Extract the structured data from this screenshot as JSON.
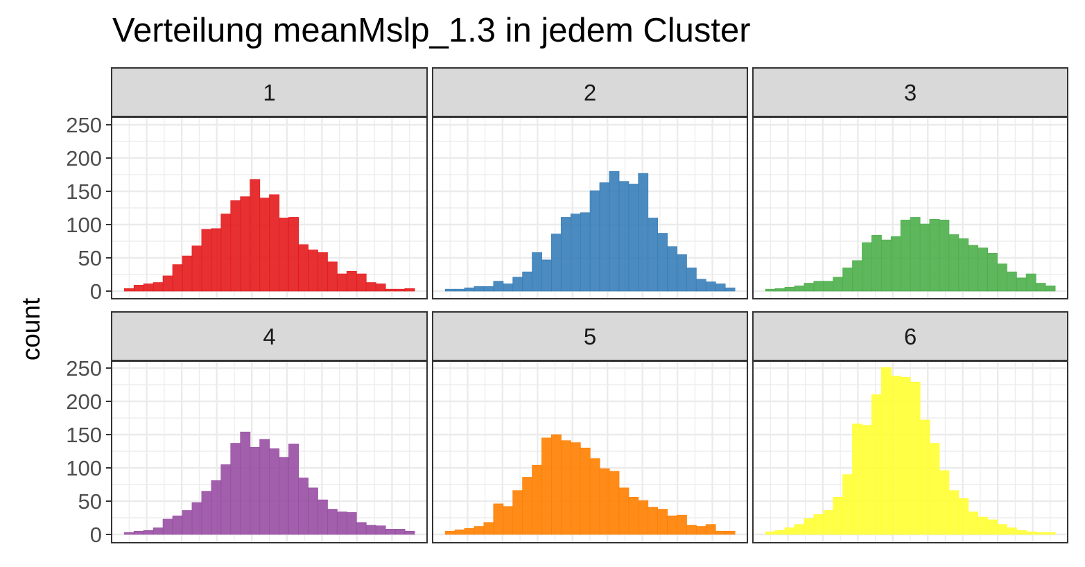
{
  "chart_data": {
    "type": "bar",
    "title": "Verteilung meanMslp_1.3 in jedem Cluster",
    "xlabel": "",
    "ylabel": "count",
    "ylim": [
      0,
      265
    ],
    "yticks": [
      0,
      50,
      100,
      150,
      200,
      250
    ],
    "grid": true,
    "legend": "none",
    "panels": [
      {
        "label": "1",
        "color": "#e41a1c",
        "values": [
          4,
          9,
          11,
          13,
          23,
          40,
          53,
          68,
          93,
          94,
          116,
          136,
          142,
          168,
          140,
          145,
          110,
          111,
          70,
          62,
          58,
          44,
          26,
          30,
          26,
          13,
          11,
          3,
          3,
          4
        ]
      },
      {
        "label": "2",
        "color": "#377eb8",
        "values": [
          3,
          3,
          5,
          7,
          7,
          15,
          11,
          21,
          29,
          58,
          47,
          86,
          111,
          116,
          118,
          151,
          163,
          180,
          165,
          161,
          177,
          110,
          87,
          67,
          55,
          35,
          18,
          14,
          11,
          5
        ]
      },
      {
        "label": "3",
        "color": "#4daf4a",
        "values": [
          3,
          4,
          6,
          8,
          12,
          15,
          15,
          21,
          35,
          46,
          73,
          84,
          77,
          82,
          107,
          111,
          101,
          108,
          107,
          85,
          79,
          69,
          65,
          57,
          41,
          29,
          20,
          26,
          12,
          8
        ]
      },
      {
        "label": "4",
        "color": "#984ea3",
        "values": [
          3,
          5,
          6,
          10,
          23,
          28,
          36,
          48,
          65,
          81,
          105,
          137,
          154,
          131,
          143,
          129,
          116,
          136,
          85,
          70,
          52,
          38,
          34,
          33,
          18,
          14,
          13,
          8,
          8,
          5
        ]
      },
      {
        "label": "5",
        "color": "#ff7f00",
        "values": [
          5,
          7,
          9,
          12,
          18,
          46,
          42,
          66,
          86,
          104,
          145,
          150,
          141,
          138,
          130,
          114,
          99,
          95,
          70,
          56,
          51,
          41,
          38,
          28,
          29,
          14,
          12,
          15,
          5,
          5
        ]
      },
      {
        "label": "6",
        "color": "#ffff33",
        "values": [
          4,
          6,
          10,
          15,
          24,
          30,
          36,
          56,
          90,
          166,
          164,
          210,
          251,
          238,
          236,
          229,
          172,
          137,
          96,
          66,
          54,
          34,
          26,
          22,
          15,
          10,
          6,
          4,
          3,
          3
        ]
      }
    ]
  }
}
